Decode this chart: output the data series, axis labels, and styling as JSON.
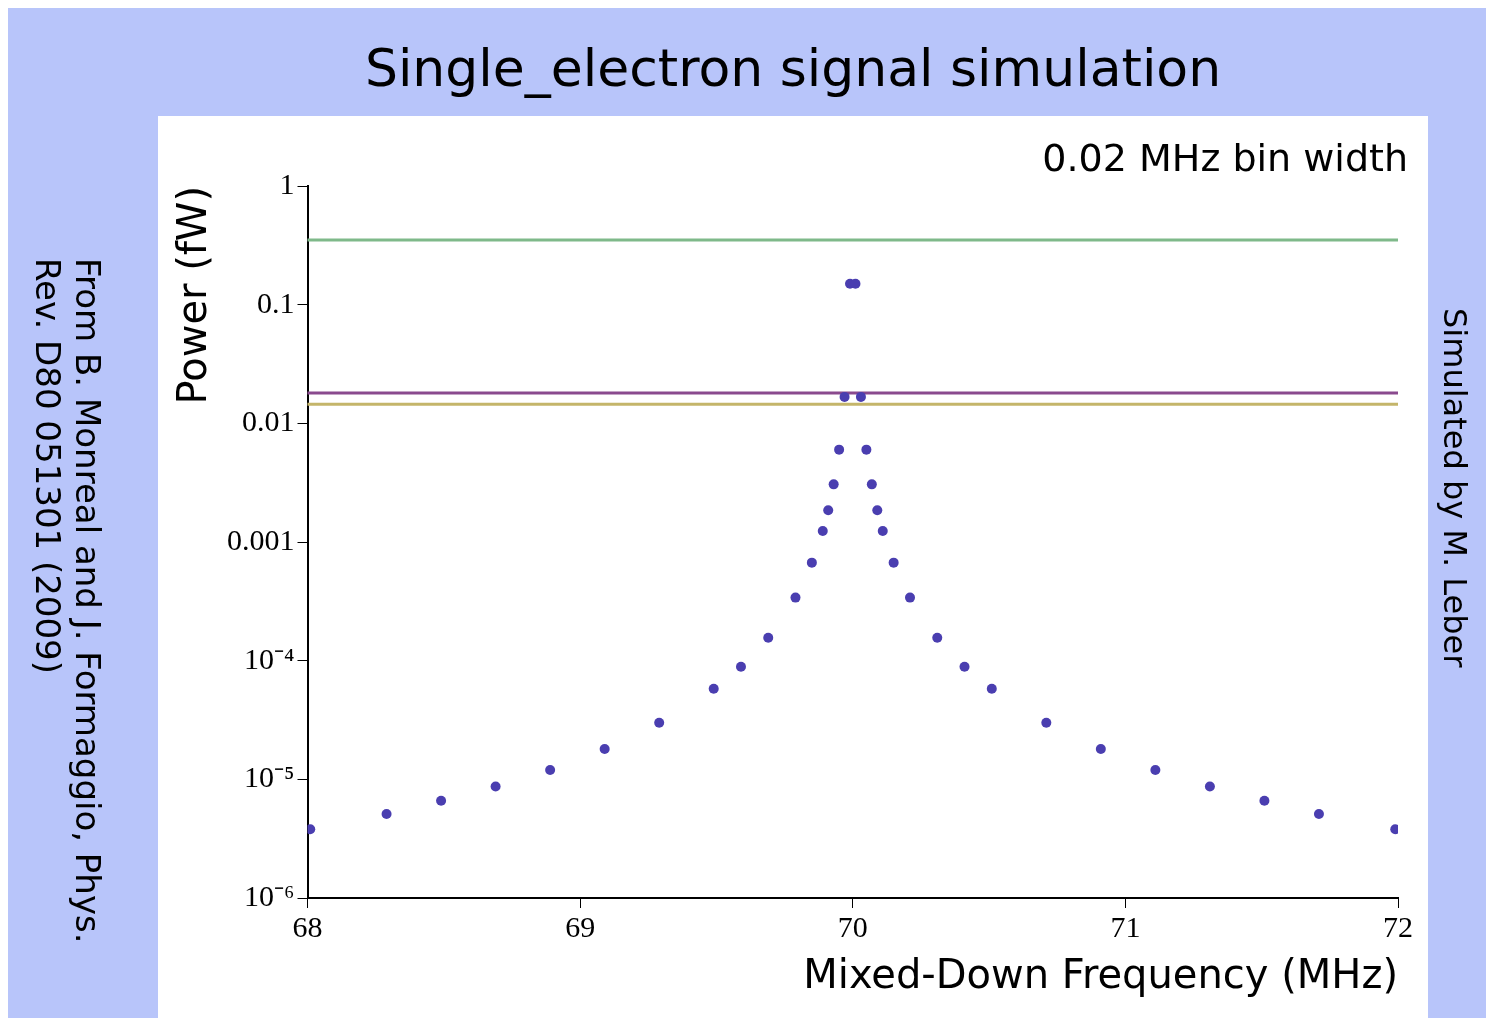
{
  "chart_data": {
    "type": "scatter",
    "title": "Single_electron signal simulation",
    "xlabel": "Mixed-Down Frequency (MHz)",
    "ylabel": "Power (fW)",
    "annotations": [
      "0.02 MHz bin width",
      "From B. Monreal and J. Formaggio, Phys. Rev. D80 051301 (2009)",
      "Simulated by M. Leber"
    ],
    "series": [
      {
        "color": "#4a3eb0",
        "x": [
          68.01,
          68.29,
          68.49,
          68.69,
          68.89,
          69.09,
          69.29,
          69.49,
          69.59,
          69.69,
          69.79,
          69.85,
          69.89,
          69.91,
          69.93,
          69.95,
          69.97,
          69.99,
          70.01,
          70.03,
          70.05,
          70.07,
          70.09,
          70.11,
          70.15,
          70.21,
          70.31,
          70.41,
          70.51,
          70.71,
          70.91,
          71.11,
          71.31,
          71.51,
          71.71,
          71.99
        ],
        "values": [
          3.8e-06,
          5.1e-06,
          6.6e-06,
          8.7e-06,
          1.2e-05,
          1.8e-05,
          3e-05,
          5.8e-05,
          8.9e-05,
          0.000156,
          0.00034,
          0.00067,
          0.00124,
          0.00185,
          0.00306,
          0.006,
          0.0167,
          0.15,
          0.15,
          0.0167,
          0.006,
          0.00306,
          0.00185,
          0.00124,
          0.00067,
          0.00034,
          0.000156,
          8.9e-05,
          5.8e-05,
          3e-05,
          1.8e-05,
          1.2e-05,
          8.7e-06,
          6.6e-06,
          5.1e-06,
          3.8e-06
        ]
      }
    ],
    "ref_lines": [
      {
        "axis": "y",
        "value": 0.35,
        "color": "#7fb98a"
      },
      {
        "axis": "y",
        "value": 0.018,
        "color": "#8a4a8e"
      },
      {
        "axis": "y",
        "value": 0.0145,
        "color": "#c4b56a"
      }
    ],
    "log": "y",
    "marker": "circle",
    "grid": false,
    "legend": false,
    "xlim": [
      68,
      72
    ],
    "xticks": [
      68,
      69,
      70,
      71,
      72
    ],
    "ylim": [
      1e-06,
      1
    ],
    "yticks": [
      1,
      0.1,
      0.01,
      0.001,
      {
        "value": 0.0001,
        "label": "10⁻⁴"
      },
      {
        "value": 1e-05,
        "label": "10⁻⁵"
      },
      {
        "value": 1e-06,
        "label": "10⁻⁶"
      }
    ]
  }
}
